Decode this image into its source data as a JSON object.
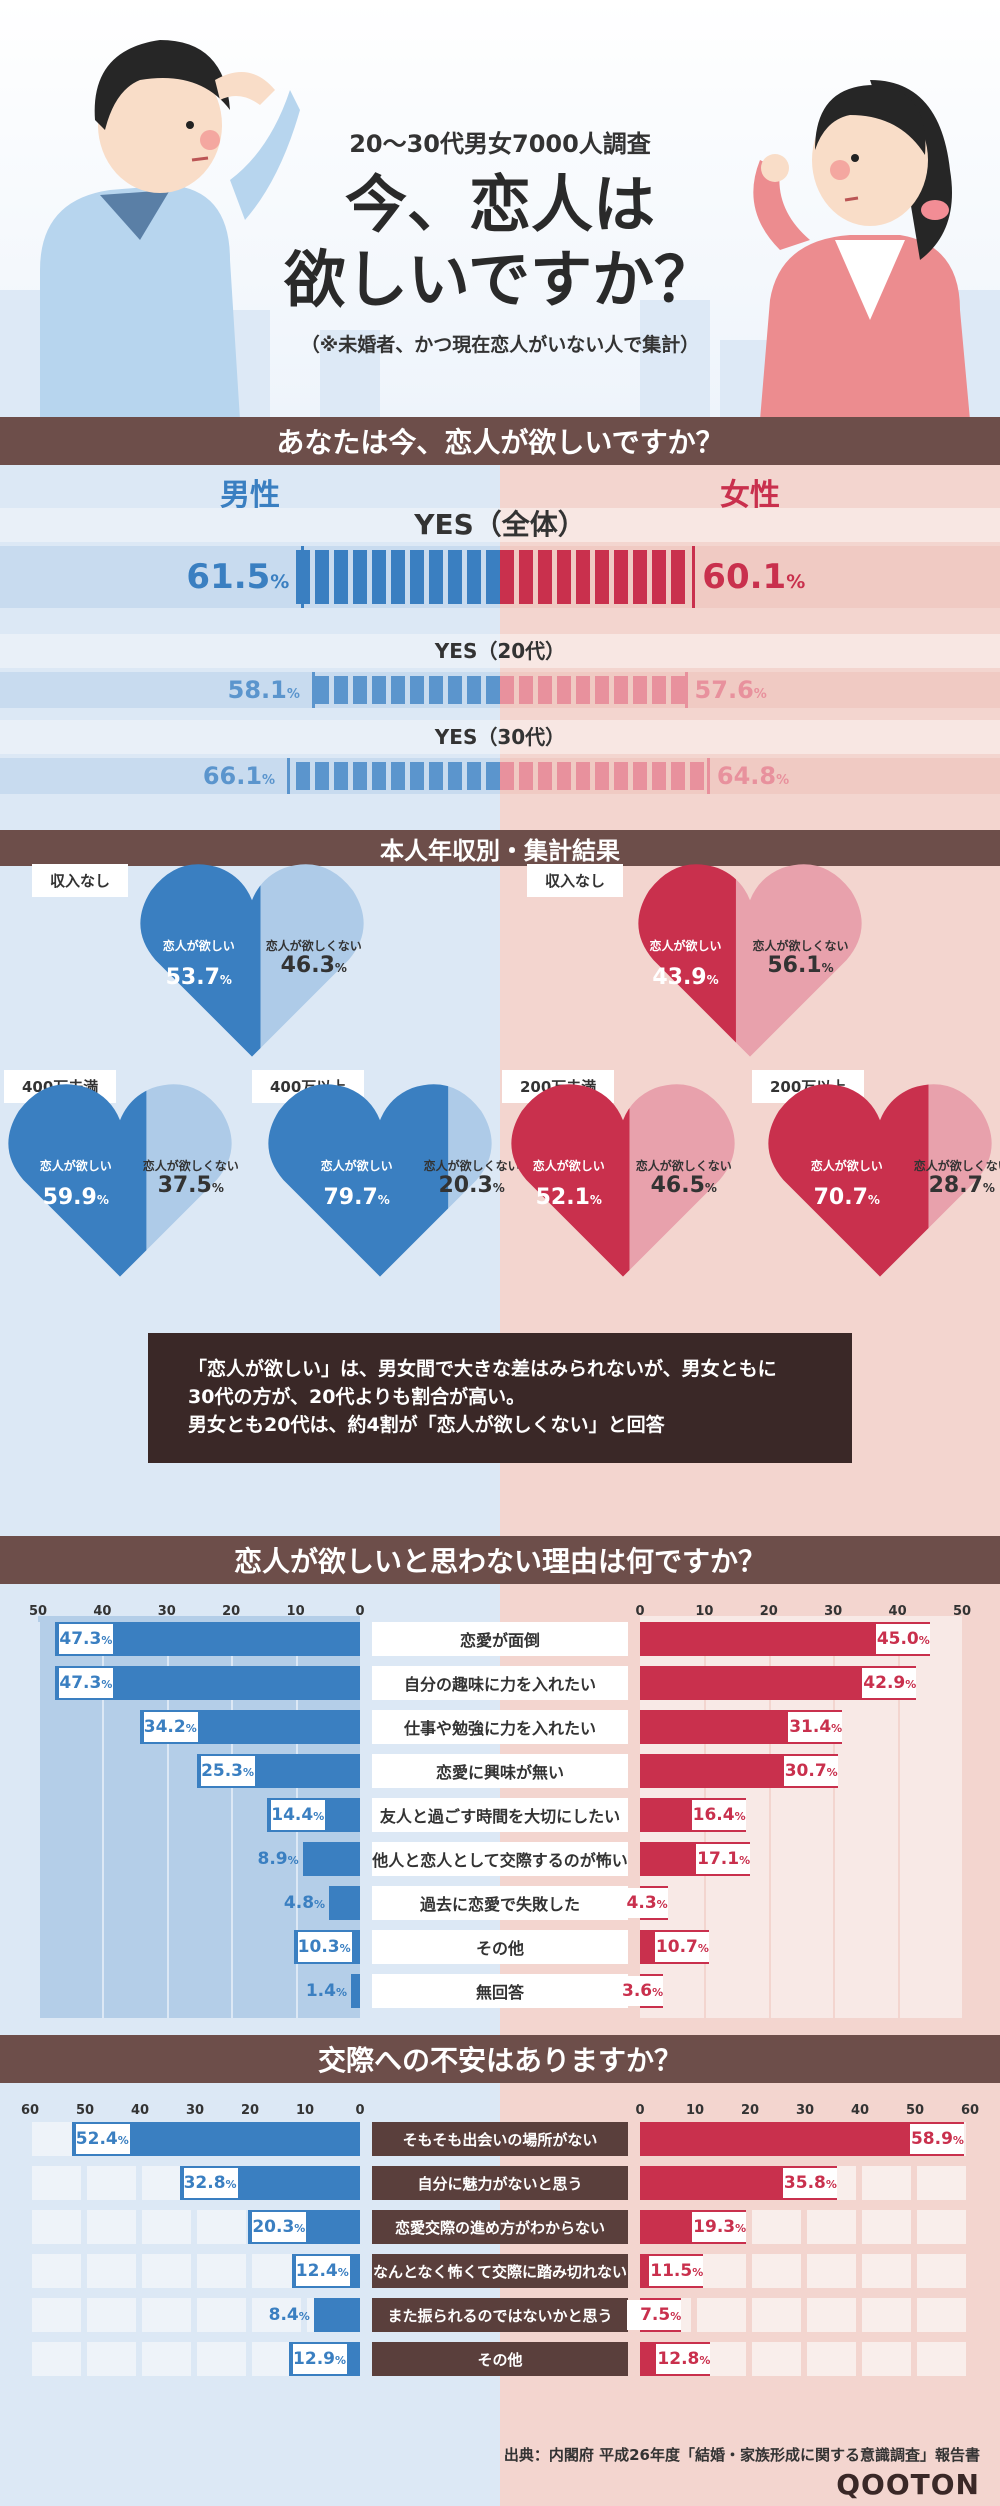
{
  "header": {
    "subtitle": "20～30代男女7000人調査",
    "title_line1": "今、恋人は",
    "title_line2": "欲しいですか？",
    "note": "（※未婚者、かつ現在恋人がいない人で集計）"
  },
  "colors": {
    "male": "#3a7fc1",
    "male_light": "#aecbe8",
    "female": "#c9304d",
    "female_light": "#e8a1ac",
    "band": "#6d4e4a"
  },
  "section1": {
    "title": "あなたは今、恋人が欲しいですか？",
    "male_label": "男性",
    "female_label": "女性",
    "rows": [
      {
        "label": "YES（全体）",
        "male": "61.5",
        "female": "60.1"
      },
      {
        "label": "YES（20代）",
        "male": "58.1",
        "female": "57.6"
      },
      {
        "label": "YES（30代）",
        "male": "66.1",
        "female": "64.8"
      }
    ],
    "pct_sign": "%"
  },
  "section2": {
    "title": "本人年収別・集計結果",
    "want_label": "恋人が欲しい",
    "notwant_label": "恋人が欲しくない",
    "male": [
      {
        "label": "収入なし",
        "want": "53.7",
        "notwant": "46.3"
      },
      {
        "label": "400万未満",
        "want": "59.9",
        "notwant": "37.5"
      },
      {
        "label": "400万以上",
        "want": "79.7",
        "notwant": "20.3"
      }
    ],
    "female": [
      {
        "label": "収入なし",
        "want": "43.9",
        "notwant": "56.1"
      },
      {
        "label": "200万未満",
        "want": "52.1",
        "notwant": "46.5"
      },
      {
        "label": "200万以上",
        "want": "70.7",
        "notwant": "28.7"
      }
    ],
    "summary_line1": "「恋人が欲しい」は、男女間で大きな差はみられないが、男女ともに",
    "summary_line2": "30代の方が、20代よりも割合が高い。",
    "summary_line3": "男女とも20代は、約4割が「恋人が欲しくない」と回答"
  },
  "chart_data": [
    {
      "type": "bar",
      "title": "恋人が欲しいと思わない理由は何ですか？",
      "categories": [
        "恋愛が面倒",
        "自分の趣味に力を入れたい",
        "仕事や勉強に力を入れたい",
        "恋愛に興味が無い",
        "友人と過ごす時間を大切にしたい",
        "他人と恋人として交際するのが怖い",
        "過去に恋愛で失敗した",
        "その他",
        "無回答"
      ],
      "series": [
        {
          "name": "男性",
          "values": [
            47.3,
            47.3,
            34.2,
            25.3,
            14.4,
            8.9,
            4.8,
            10.3,
            1.4
          ]
        },
        {
          "name": "女性",
          "values": [
            45.0,
            42.9,
            31.4,
            30.7,
            16.4,
            17.1,
            4.3,
            10.7,
            3.6
          ]
        }
      ],
      "xlim": [
        0,
        50
      ],
      "ticks": [
        0,
        10,
        20,
        30,
        40,
        50
      ]
    },
    {
      "type": "bar",
      "title": "交際への不安はありますか？",
      "categories": [
        "そもそも出会いの場所がない",
        "自分に魅力がないと思う",
        "恋愛交際の進め方がわからない",
        "なんとなく怖くて交際に踏み切れない",
        "また振られるのではないかと思う",
        "その他"
      ],
      "series": [
        {
          "name": "男性",
          "values": [
            52.4,
            32.8,
            20.3,
            12.4,
            8.4,
            12.9
          ]
        },
        {
          "name": "女性",
          "values": [
            58.9,
            35.8,
            19.3,
            11.5,
            7.5,
            12.8
          ]
        }
      ],
      "xlim": [
        0,
        60
      ],
      "ticks": [
        0,
        10,
        20,
        30,
        40,
        50,
        60
      ]
    }
  ],
  "footer": {
    "source": "出典：内閣府 平成26年度「結婚・家族形成に関する意識調査」報告書",
    "logo": "QOOTON"
  }
}
